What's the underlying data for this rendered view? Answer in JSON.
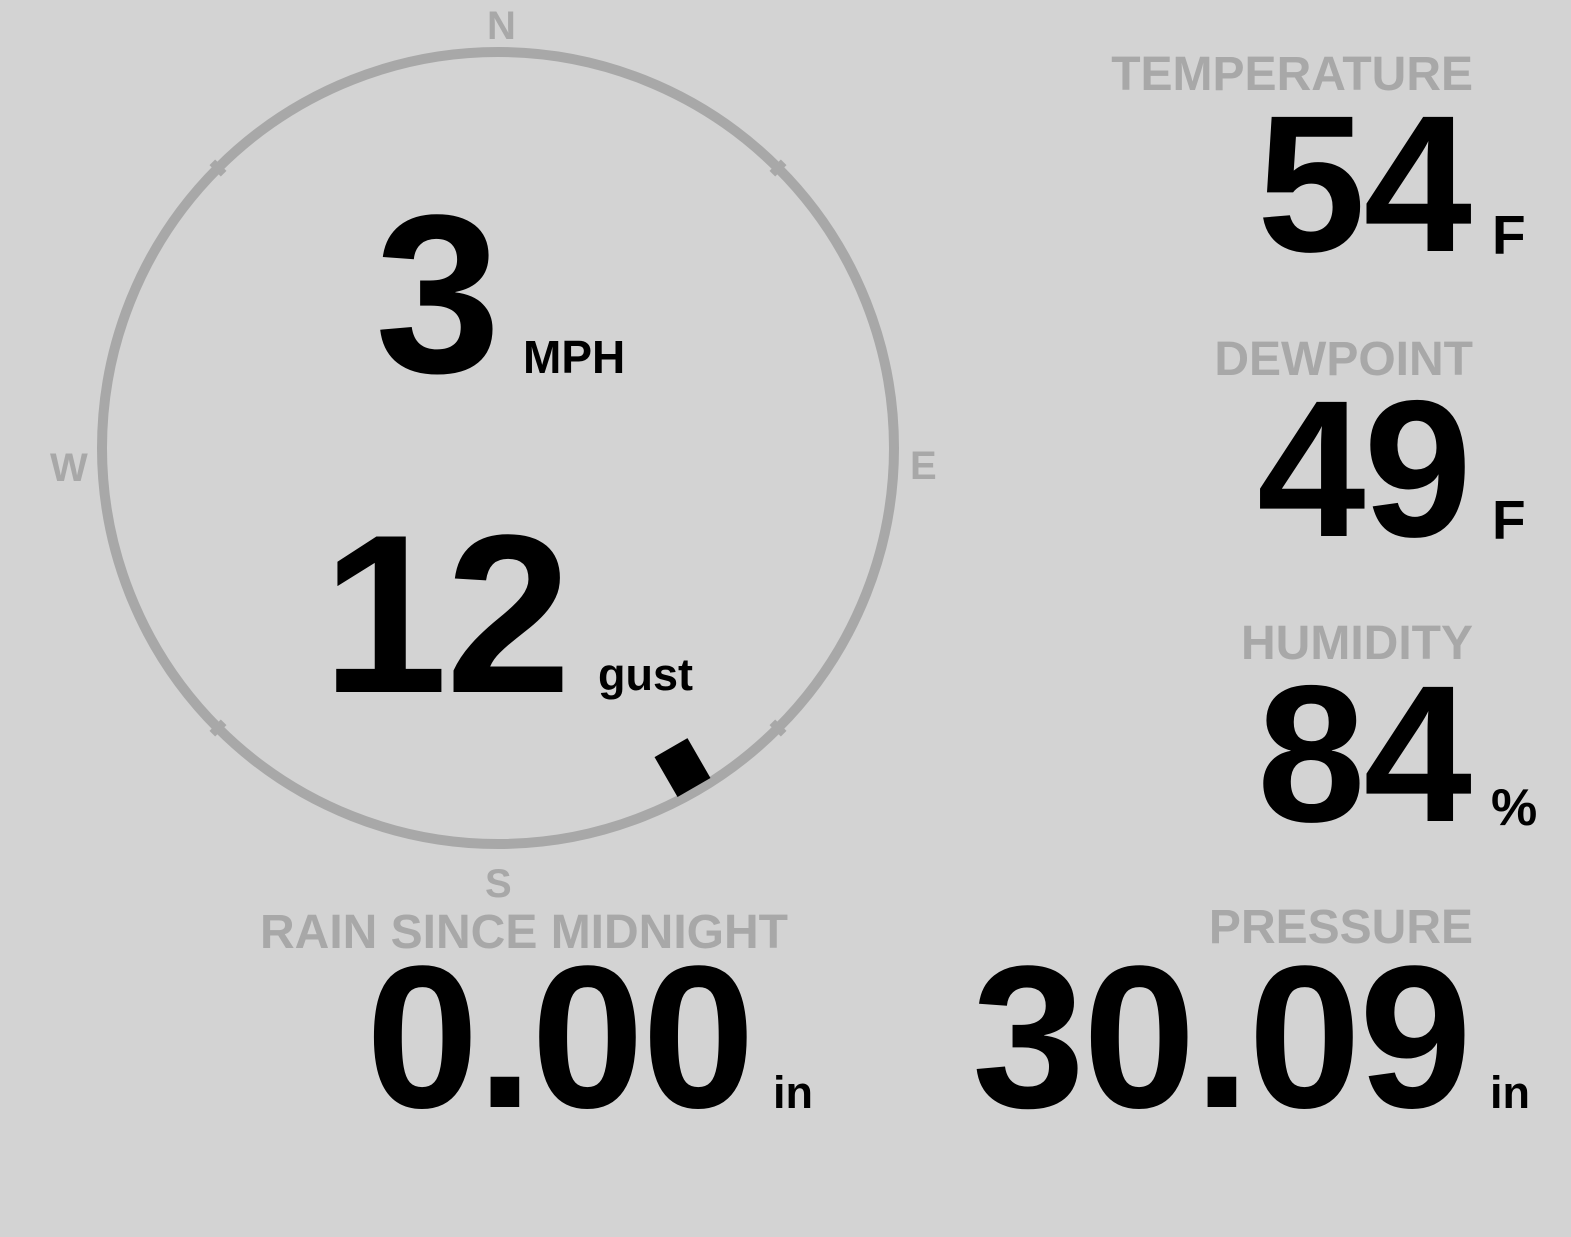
{
  "wind": {
    "speed": "3",
    "speed_unit": "MPH",
    "gust": "12",
    "gust_label": "gust",
    "direction_deg": 150,
    "compass": {
      "n": "N",
      "e": "E",
      "s": "S",
      "w": "W"
    },
    "ring_color": "#a8a8a8",
    "pointer_color": "#000000"
  },
  "temperature": {
    "label": "TEMPERATURE",
    "value": "54",
    "unit": "F"
  },
  "dewpoint": {
    "label": "DEWPOINT",
    "value": "49",
    "unit": "F"
  },
  "humidity": {
    "label": "HUMIDITY",
    "value": "84",
    "unit": "%"
  },
  "pressure": {
    "label": "PRESSURE",
    "value": "30.09",
    "unit": "in"
  },
  "rain": {
    "label": "RAIN SINCE MIDNIGHT",
    "value": "0.00",
    "unit": "in"
  },
  "colors": {
    "background": "#d3d3d3",
    "label": "#a8a8a8",
    "value": "#000000"
  }
}
